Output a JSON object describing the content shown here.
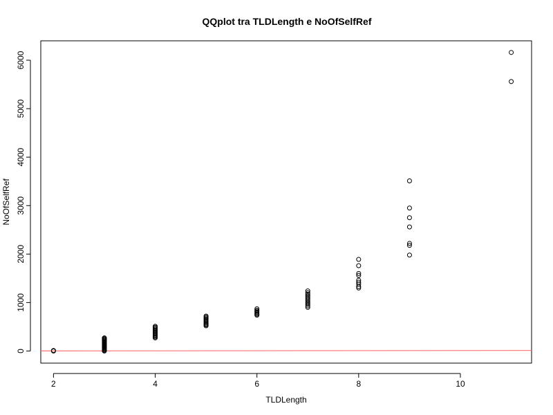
{
  "chart_data": {
    "type": "scatter",
    "title": "QQplot tra TLDLength e NoOfSelfRef",
    "xlabel": "TLDLength",
    "ylabel": "NoOfSelfRef",
    "xlim": [
      1.75,
      11.4
    ],
    "ylim": [
      -250,
      6400
    ],
    "x_ticks": [
      2,
      4,
      6,
      8,
      10
    ],
    "x_tick_labels": [
      "2",
      "4",
      "6",
      "8",
      "10"
    ],
    "y_ticks": [
      0,
      1000,
      2000,
      3000,
      4000,
      5000,
      6000
    ],
    "y_tick_labels": [
      "0",
      "1000",
      "2000",
      "3000",
      "4000",
      "5000",
      "6000"
    ],
    "grid": false,
    "legend": "none",
    "point_color": "#000000",
    "reference_line": {
      "color": "#FF6F6F",
      "intercept": 0,
      "slope": 1
    },
    "points": [
      {
        "x": 2,
        "y": 0
      },
      {
        "x": 2,
        "y": 5
      },
      {
        "x": 2,
        "y": 10
      },
      {
        "x": 3,
        "y": 0
      },
      {
        "x": 3,
        "y": 15
      },
      {
        "x": 3,
        "y": 30
      },
      {
        "x": 3,
        "y": 45
      },
      {
        "x": 3,
        "y": 60
      },
      {
        "x": 3,
        "y": 75
      },
      {
        "x": 3,
        "y": 90
      },
      {
        "x": 3,
        "y": 105
      },
      {
        "x": 3,
        "y": 120
      },
      {
        "x": 3,
        "y": 135
      },
      {
        "x": 3,
        "y": 150
      },
      {
        "x": 3,
        "y": 165
      },
      {
        "x": 3,
        "y": 180
      },
      {
        "x": 3,
        "y": 195
      },
      {
        "x": 3,
        "y": 210
      },
      {
        "x": 3,
        "y": 225
      },
      {
        "x": 3,
        "y": 240
      },
      {
        "x": 3,
        "y": 255
      },
      {
        "x": 3,
        "y": 270
      },
      {
        "x": 4,
        "y": 270
      },
      {
        "x": 4,
        "y": 290
      },
      {
        "x": 4,
        "y": 310
      },
      {
        "x": 4,
        "y": 330
      },
      {
        "x": 4,
        "y": 350
      },
      {
        "x": 4,
        "y": 370
      },
      {
        "x": 4,
        "y": 390
      },
      {
        "x": 4,
        "y": 410
      },
      {
        "x": 4,
        "y": 430
      },
      {
        "x": 4,
        "y": 450
      },
      {
        "x": 4,
        "y": 470
      },
      {
        "x": 4,
        "y": 490
      },
      {
        "x": 4,
        "y": 510
      },
      {
        "x": 5,
        "y": 520
      },
      {
        "x": 5,
        "y": 540
      },
      {
        "x": 5,
        "y": 560
      },
      {
        "x": 5,
        "y": 580
      },
      {
        "x": 5,
        "y": 600
      },
      {
        "x": 5,
        "y": 620
      },
      {
        "x": 5,
        "y": 640
      },
      {
        "x": 5,
        "y": 660
      },
      {
        "x": 5,
        "y": 680
      },
      {
        "x": 5,
        "y": 700
      },
      {
        "x": 5,
        "y": 720
      },
      {
        "x": 6,
        "y": 740
      },
      {
        "x": 6,
        "y": 760
      },
      {
        "x": 6,
        "y": 780
      },
      {
        "x": 6,
        "y": 800
      },
      {
        "x": 6,
        "y": 820
      },
      {
        "x": 6,
        "y": 840
      },
      {
        "x": 6,
        "y": 870
      },
      {
        "x": 7,
        "y": 900
      },
      {
        "x": 7,
        "y": 930
      },
      {
        "x": 7,
        "y": 960
      },
      {
        "x": 7,
        "y": 990
      },
      {
        "x": 7,
        "y": 1020
      },
      {
        "x": 7,
        "y": 1050
      },
      {
        "x": 7,
        "y": 1080
      },
      {
        "x": 7,
        "y": 1110
      },
      {
        "x": 7,
        "y": 1140
      },
      {
        "x": 7,
        "y": 1170
      },
      {
        "x": 7,
        "y": 1200
      },
      {
        "x": 7,
        "y": 1240
      },
      {
        "x": 8,
        "y": 1300
      },
      {
        "x": 8,
        "y": 1330
      },
      {
        "x": 8,
        "y": 1380
      },
      {
        "x": 8,
        "y": 1420
      },
      {
        "x": 8,
        "y": 1460
      },
      {
        "x": 8,
        "y": 1560
      },
      {
        "x": 8,
        "y": 1600
      },
      {
        "x": 8,
        "y": 1760
      },
      {
        "x": 8,
        "y": 1890
      },
      {
        "x": 9,
        "y": 1980
      },
      {
        "x": 9,
        "y": 2180
      },
      {
        "x": 9,
        "y": 2220
      },
      {
        "x": 9,
        "y": 2560
      },
      {
        "x": 9,
        "y": 2750
      },
      {
        "x": 9,
        "y": 2950
      },
      {
        "x": 9,
        "y": 3510
      },
      {
        "x": 11,
        "y": 5560
      },
      {
        "x": 11,
        "y": 6160
      }
    ]
  }
}
